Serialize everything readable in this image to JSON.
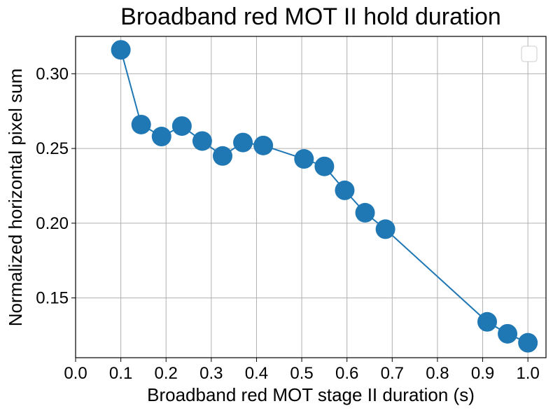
{
  "chart_data": {
    "type": "line",
    "title": "Broadband red MOT II hold duration",
    "xlabel": "Broadband red MOT stage II duration (s)",
    "ylabel": "Normalized horizontal pixel sum",
    "xlim": [
      0.0,
      1.04
    ],
    "ylim": [
      0.11,
      0.325
    ],
    "xticks": [
      0.0,
      0.1,
      0.2,
      0.3,
      0.4,
      0.5,
      0.6,
      0.7,
      0.8,
      0.9,
      1.0
    ],
    "xtick_labels": [
      "0.0",
      "0.1",
      "0.2",
      "0.3",
      "0.4",
      "0.5",
      "0.6",
      "0.7",
      "0.8",
      "0.9",
      "1.0"
    ],
    "yticks": [
      0.15,
      0.2,
      0.25,
      0.3
    ],
    "ytick_labels": [
      "0.15",
      "0.20",
      "0.25",
      "0.30"
    ],
    "grid": true,
    "legend": "upper-right, empty",
    "color": "#1f77b4",
    "series": [
      {
        "x": [
          0.1,
          0.145,
          0.19,
          0.235,
          0.28,
          0.325,
          0.37,
          0.415,
          0.505,
          0.55,
          0.595,
          0.64,
          0.685,
          0.91,
          0.955,
          1.0
        ],
        "y": [
          0.316,
          0.266,
          0.258,
          0.265,
          0.255,
          0.245,
          0.254,
          0.252,
          0.243,
          0.238,
          0.222,
          0.207,
          0.196,
          0.134,
          0.126,
          0.12
        ]
      }
    ]
  }
}
